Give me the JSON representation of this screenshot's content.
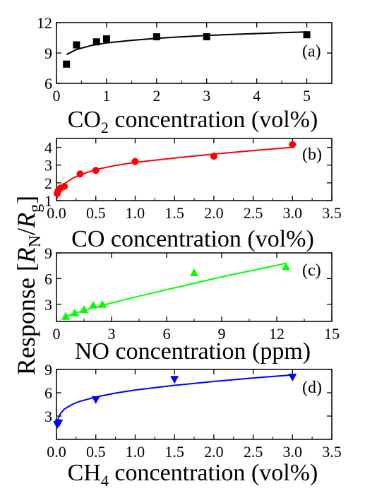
{
  "y_axis_label": {
    "prefix": "Response [",
    "r": "R",
    "sub_n": "N",
    "slash": "/",
    "r2": "R",
    "sub_g": "g",
    "suffix": "]"
  },
  "chart_data": [
    {
      "type": "scatter",
      "panel_label": "(a)",
      "xlabel": "CO2 concentration (vol%)",
      "xlabel_parts": {
        "pre": "CO",
        "sub": "2",
        "post": " concentration (vol%)"
      },
      "xlim": [
        0,
        5.5
      ],
      "ylim": [
        6,
        12
      ],
      "xticks": [
        0,
        1,
        2,
        3,
        4,
        5
      ],
      "xtick_labels": [
        "0",
        "1",
        "2",
        "3",
        "4",
        "5"
      ],
      "yticks": [
        6,
        9,
        12
      ],
      "ytick_labels": [
        "6",
        "9",
        "12"
      ],
      "marker": "square",
      "color": "#000000",
      "points": {
        "x": [
          0.2,
          0.4,
          0.8,
          1.0,
          2.0,
          3.0,
          5.0
        ],
        "y": [
          7.9,
          9.8,
          10.1,
          10.4,
          10.6,
          10.6,
          10.8
        ]
      },
      "fit": {
        "x": [
          0.2,
          0.4,
          0.7,
          1.0,
          1.5,
          2.0,
          2.5,
          3.0,
          3.5,
          4.0,
          4.5,
          5.0
        ],
        "y": [
          8.85,
          9.35,
          9.75,
          10.0,
          10.25,
          10.45,
          10.6,
          10.72,
          10.83,
          10.92,
          11.0,
          11.08
        ]
      }
    },
    {
      "type": "scatter",
      "panel_label": "(b)",
      "xlabel": "CO concentration (vol%)",
      "xlabel_parts": {
        "pre": "CO concentration (vol%)",
        "sub": "",
        "post": ""
      },
      "xlim": [
        0,
        3.5
      ],
      "ylim": [
        1,
        4.5
      ],
      "xticks": [
        0,
        0.5,
        1,
        1.5,
        2,
        2.5,
        3,
        3.5
      ],
      "xtick_labels": [
        "0.0",
        "0.5",
        "1.0",
        "1.5",
        "2.0",
        "2.5",
        "3.0",
        "3.5"
      ],
      "yticks": [
        1,
        2,
        3,
        4
      ],
      "ytick_labels": [
        "1",
        "2",
        "3",
        "4"
      ],
      "marker": "circle",
      "color": "#ff0000",
      "points": {
        "x": [
          0.01,
          0.02,
          0.05,
          0.1,
          0.3,
          0.5,
          1.0,
          2.0,
          3.0
        ],
        "y": [
          1.4,
          1.55,
          1.7,
          1.8,
          2.5,
          2.7,
          3.2,
          3.5,
          4.15
        ]
      },
      "fit": {
        "x": [
          0.005,
          0.02,
          0.05,
          0.1,
          0.2,
          0.3,
          0.5,
          0.75,
          1.0,
          1.5,
          2.0,
          2.5,
          3.0
        ],
        "y": [
          1.1,
          1.45,
          1.75,
          1.95,
          2.25,
          2.45,
          2.75,
          2.98,
          3.15,
          3.4,
          3.62,
          3.82,
          4.0
        ]
      }
    },
    {
      "type": "scatter",
      "panel_label": "(c)",
      "xlabel": "NO concentration (ppm)",
      "xlabel_parts": {
        "pre": "NO concentration (ppm)",
        "sub": "",
        "post": ""
      },
      "xlim": [
        0,
        15
      ],
      "ylim": [
        1,
        9
      ],
      "xticks": [
        0,
        3,
        6,
        9,
        12,
        15
      ],
      "xtick_labels": [
        "0",
        "3",
        "6",
        "9",
        "12",
        "15"
      ],
      "yticks": [
        3,
        6,
        9
      ],
      "ytick_labels": [
        "3",
        "6",
        "9"
      ],
      "marker": "triangle-up",
      "color": "#00ff00",
      "points": {
        "x": [
          0.5,
          1.0,
          1.5,
          2.0,
          2.5,
          7.5,
          12.5
        ],
        "y": [
          1.6,
          2.0,
          2.4,
          2.9,
          3.0,
          6.7,
          7.4
        ]
      },
      "fit": {
        "x": [
          0.5,
          1.0,
          2.0,
          3.0,
          4.0,
          5.0,
          6.0,
          7.0,
          8.0,
          9.0,
          10.0,
          11.0,
          12.0,
          12.5
        ],
        "y": [
          1.6,
          1.95,
          2.6,
          3.15,
          3.7,
          4.2,
          4.7,
          5.2,
          5.7,
          6.2,
          6.65,
          7.1,
          7.55,
          7.8
        ]
      }
    },
    {
      "type": "scatter",
      "panel_label": "(d)",
      "xlabel": "CH4 concentration (vol%)",
      "xlabel_parts": {
        "pre": "CH",
        "sub": "4",
        "post": " concentration (vol%)"
      },
      "xlim": [
        0,
        3.5
      ],
      "ylim": [
        0,
        9
      ],
      "xticks": [
        0,
        0.5,
        1,
        1.5,
        2,
        2.5,
        3,
        3.5
      ],
      "xtick_labels": [
        "0.0",
        "0.5",
        "1.0",
        "1.5",
        "2.0",
        "2.5",
        "3.0",
        "3.5"
      ],
      "yticks": [
        3,
        6,
        9
      ],
      "ytick_labels": [
        "3",
        "6",
        "9"
      ],
      "marker": "triangle-down",
      "color": "#0000ff",
      "points": {
        "x": [
          0.01,
          0.03,
          0.5,
          1.5,
          3.0
        ],
        "y": [
          1.9,
          2.1,
          5.1,
          7.7,
          8.0
        ]
      },
      "fit": {
        "x": [
          0.005,
          0.02,
          0.05,
          0.1,
          0.2,
          0.3,
          0.5,
          0.75,
          1.0,
          1.5,
          2.0,
          2.5,
          3.0
        ],
        "y": [
          1.7,
          2.6,
          3.3,
          3.9,
          4.5,
          4.9,
          5.45,
          5.95,
          6.35,
          6.95,
          7.45,
          7.9,
          8.3
        ]
      }
    }
  ]
}
